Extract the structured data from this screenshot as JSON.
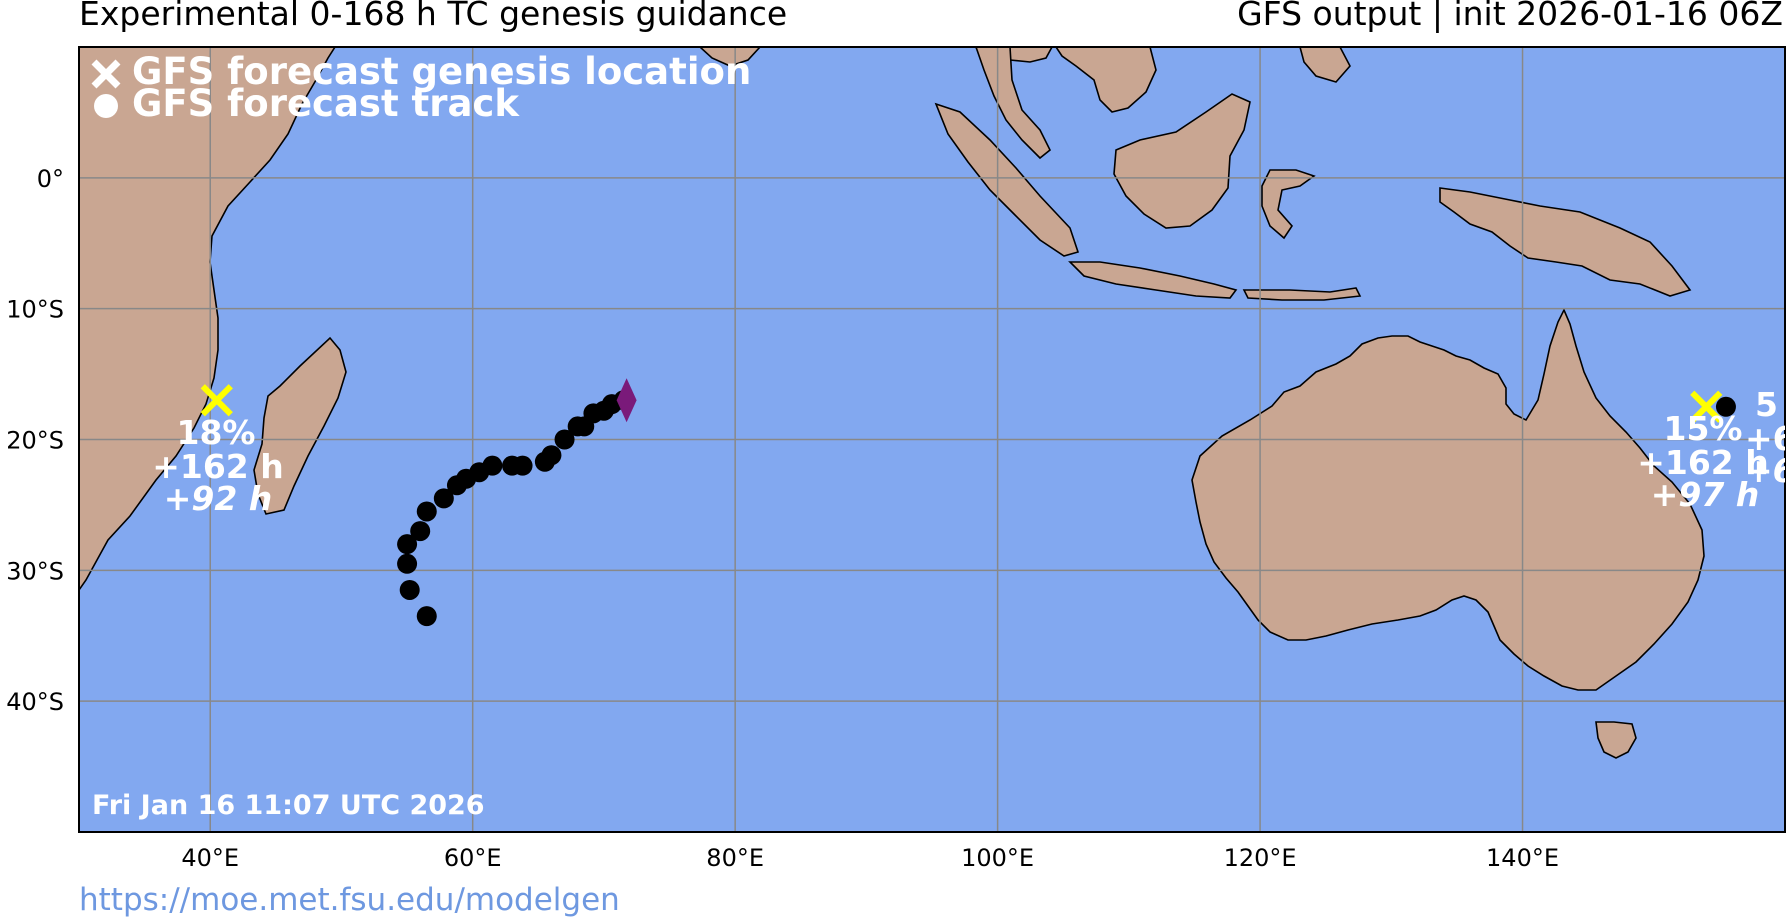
{
  "header": {
    "title_left": "Experimental 0-168 h TC genesis guidance",
    "title_right": "GFS output | init 2026-01-16 06Z"
  },
  "legend": {
    "genesis_label": "GFS forecast genesis location",
    "track_label": "GFS forecast track"
  },
  "timestamp": "Fri Jan 16 11:07 UTC 2026",
  "lat_labels": [
    "0°",
    "10°S",
    "20°S",
    "30°S",
    "40°S"
  ],
  "lon_labels": [
    "40°E",
    "60°E",
    "80°E",
    "100°E",
    "120°E",
    "140°E"
  ],
  "url": "https://moe.met.fsu.edu/modelgen",
  "colors": {
    "ocean": "#82a8f0",
    "land": "#c9a692",
    "genesis_marker": "#ffff00",
    "track": "#000000",
    "current_marker": "#7a1a7a",
    "grid": "#888888"
  },
  "map": {
    "extent": {
      "lon_min": 30,
      "lon_max": 160,
      "lat_min": -50,
      "lat_max": 10
    },
    "gridlines": {
      "lons": [
        40,
        60,
        80,
        100,
        120,
        140
      ],
      "lats": [
        0,
        -10,
        -20,
        -30,
        -40
      ]
    }
  },
  "systems": [
    {
      "genesis": {
        "lon": 40.5,
        "lat": -17.0
      },
      "probability": "18%",
      "lead_time": "+162 h",
      "genesis_time": "+92 h",
      "track": [
        {
          "lon": 56.5,
          "lat": -33.5
        },
        {
          "lon": 55.2,
          "lat": -31.5
        },
        {
          "lon": 55.0,
          "lat": -29.5
        },
        {
          "lon": 55.0,
          "lat": -28.0
        },
        {
          "lon": 56.0,
          "lat": -27.0
        },
        {
          "lon": 56.5,
          "lat": -25.5
        },
        {
          "lon": 57.8,
          "lat": -24.5
        },
        {
          "lon": 58.8,
          "lat": -23.5
        },
        {
          "lon": 59.5,
          "lat": -23.0
        },
        {
          "lon": 60.5,
          "lat": -22.5
        },
        {
          "lon": 61.5,
          "lat": -22.0
        },
        {
          "lon": 63.0,
          "lat": -22.0
        },
        {
          "lon": 63.8,
          "lat": -22.0
        },
        {
          "lon": 65.5,
          "lat": -21.7
        },
        {
          "lon": 66.0,
          "lat": -21.2
        },
        {
          "lon": 67.0,
          "lat": -20.0
        },
        {
          "lon": 68.0,
          "lat": -19.0
        },
        {
          "lon": 68.5,
          "lat": -19.0
        },
        {
          "lon": 69.2,
          "lat": -18.0
        },
        {
          "lon": 70.0,
          "lat": -17.8
        },
        {
          "lon": 70.6,
          "lat": -17.3
        },
        {
          "lon": 71.5,
          "lat": -17.0
        }
      ],
      "current": {
        "lon": 71.5,
        "lat": -17.0
      }
    },
    {
      "genesis": {
        "lon": 154.0,
        "lat": -17.5
      },
      "probability": "15%",
      "lead_time": "+162 h",
      "genesis_time": "+97 h",
      "track": [
        {
          "lon": 155.5,
          "lat": -17.5
        }
      ]
    }
  ],
  "clipped_labels": {
    "prob": "5",
    "lead": "+6",
    "gen": "+6"
  }
}
